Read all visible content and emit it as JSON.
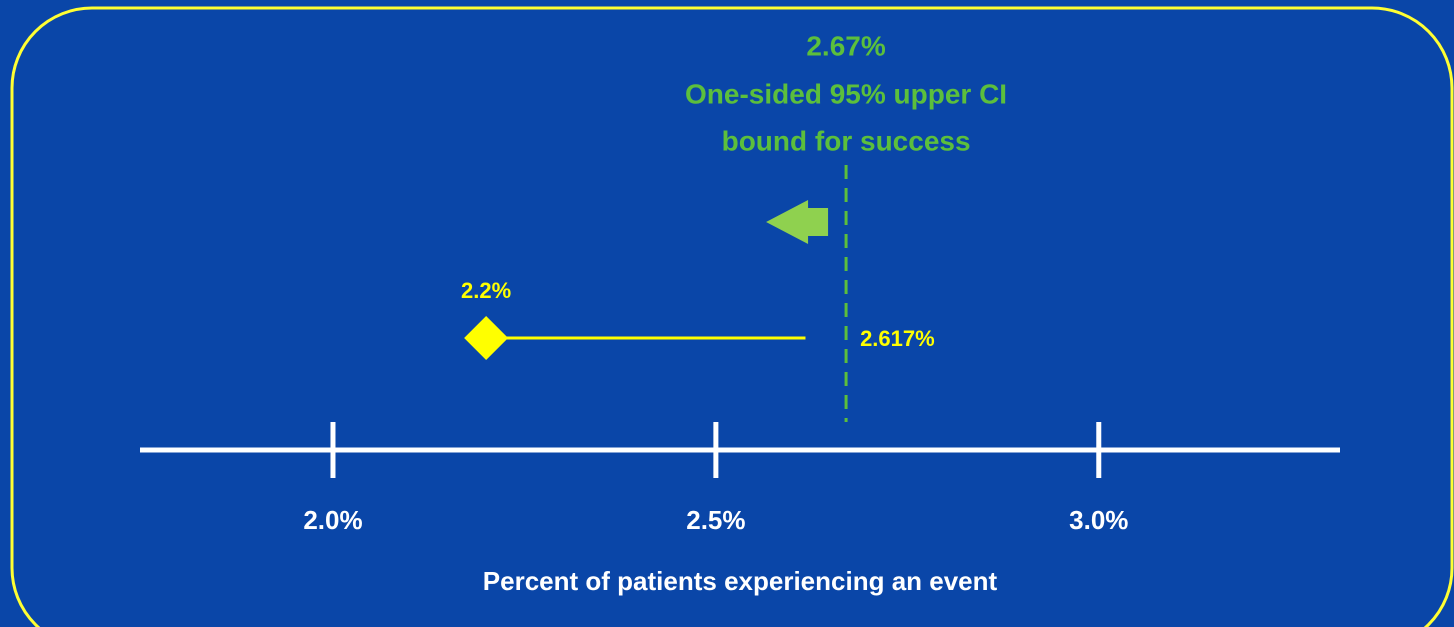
{
  "chart_data": {
    "type": "interval",
    "xlabel": "Percent of patients experiencing an event",
    "xlim": [
      1.748,
      3.315
    ],
    "xticks": [
      {
        "value": 2.0,
        "label": "2.0%"
      },
      {
        "value": 2.5,
        "label": "2.5%"
      },
      {
        "value": 3.0,
        "label": "3.0%"
      }
    ],
    "values": [
      2.2
    ],
    "value_labels": [
      "2.2%"
    ],
    "upper": [
      2.617
    ],
    "upper_labels": [
      "2.617%"
    ],
    "color": "#ffff00",
    "threshold": {
      "value": 2.67,
      "label": "2.67%",
      "annotation": [
        "One-sided 95% upper CI",
        "bound for success"
      ],
      "color": "#5cbf3c"
    }
  }
}
